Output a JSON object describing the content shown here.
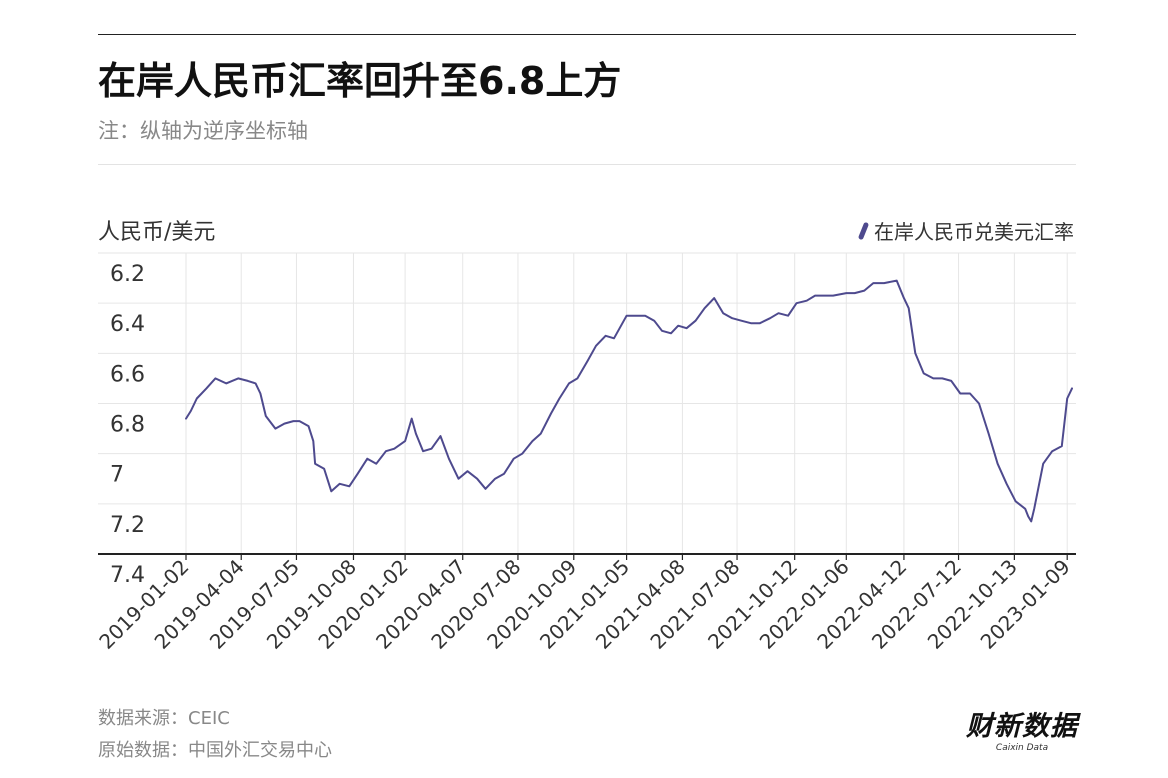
{
  "title": "在岸人民币汇率回升至6.8上方",
  "subtitle": "注：纵轴为逆序坐标轴",
  "source": "数据来源：CEIC",
  "original_source": "原始数据：中国外汇交易中心",
  "brand": {
    "cn": "财新数据",
    "en": "Caixin Data"
  },
  "colors": {
    "line": "#4e4a8e",
    "grid": "#e6e6e6",
    "axis": "#222222",
    "tick_text": "#333333"
  },
  "chart_data": {
    "type": "line",
    "title": "在岸人民币汇率回升至6.8上方",
    "subtitle": "注：纵轴为逆序坐标轴",
    "ylabel": "人民币/美元",
    "xlabel": "",
    "y_reversed": true,
    "ylim": [
      6.2,
      7.4
    ],
    "yticks": [
      6.2,
      6.4,
      6.6,
      6.8,
      7,
      7.2,
      7.4
    ],
    "ytick_labels": [
      "6.2",
      "6.4",
      "6.6",
      "6.8",
      "7",
      "7.2",
      "7.4"
    ],
    "xlim": [
      "2019-01-02",
      "2023-01-17"
    ],
    "xticks": [
      "2019-01-02",
      "2019-04-04",
      "2019-07-05",
      "2019-10-08",
      "2020-01-02",
      "2020-04-07",
      "2020-07-08",
      "2020-10-09",
      "2021-01-05",
      "2021-04-08",
      "2021-07-08",
      "2021-10-12",
      "2022-01-06",
      "2022-04-12",
      "2022-07-12",
      "2022-10-13",
      "2023-01-09"
    ],
    "grid": true,
    "legend": "top-right",
    "series": [
      {
        "name": "在岸人民币兑美元汇率",
        "x": [
          "2019-01-02",
          "2019-01-10",
          "2019-01-20",
          "2019-02-05",
          "2019-02-20",
          "2019-03-10",
          "2019-03-30",
          "2019-04-15",
          "2019-04-28",
          "2019-05-06",
          "2019-05-15",
          "2019-05-31",
          "2019-06-15",
          "2019-06-30",
          "2019-07-10",
          "2019-07-25",
          "2019-08-02",
          "2019-08-05",
          "2019-08-20",
          "2019-09-01",
          "2019-09-15",
          "2019-10-01",
          "2019-10-15",
          "2019-10-31",
          "2019-11-15",
          "2019-12-01",
          "2019-12-15",
          "2020-01-02",
          "2020-01-13",
          "2020-01-20",
          "2020-02-01",
          "2020-02-15",
          "2020-03-01",
          "2020-03-15",
          "2020-03-31",
          "2020-04-15",
          "2020-05-01",
          "2020-05-15",
          "2020-05-31",
          "2020-06-15",
          "2020-07-01",
          "2020-07-15",
          "2020-08-01",
          "2020-08-15",
          "2020-09-01",
          "2020-09-15",
          "2020-10-01",
          "2020-10-15",
          "2020-11-01",
          "2020-11-15",
          "2020-12-01",
          "2020-12-15",
          "2021-01-05",
          "2021-01-20",
          "2021-02-05",
          "2021-02-20",
          "2021-03-05",
          "2021-03-20",
          "2021-04-01",
          "2021-04-15",
          "2021-04-30",
          "2021-05-15",
          "2021-05-31",
          "2021-06-15",
          "2021-06-30",
          "2021-07-15",
          "2021-07-31",
          "2021-08-15",
          "2021-09-01",
          "2021-09-15",
          "2021-10-01",
          "2021-10-15",
          "2021-11-01",
          "2021-11-15",
          "2021-12-01",
          "2021-12-15",
          "2022-01-06",
          "2022-01-20",
          "2022-02-05",
          "2022-02-20",
          "2022-03-10",
          "2022-03-31",
          "2022-04-12",
          "2022-04-20",
          "2022-05-01",
          "2022-05-15",
          "2022-05-31",
          "2022-06-15",
          "2022-06-30",
          "2022-07-15",
          "2022-07-31",
          "2022-08-15",
          "2022-08-31",
          "2022-09-15",
          "2022-09-30",
          "2022-10-15",
          "2022-10-31",
          "2022-11-05",
          "2022-11-10",
          "2022-11-15",
          "2022-11-30",
          "2022-12-15",
          "2022-12-31",
          "2023-01-09",
          "2023-01-17"
        ],
        "values": [
          6.86,
          6.83,
          6.78,
          6.74,
          6.7,
          6.72,
          6.7,
          6.71,
          6.72,
          6.76,
          6.85,
          6.9,
          6.88,
          6.87,
          6.87,
          6.89,
          6.95,
          7.04,
          7.06,
          7.15,
          7.12,
          7.13,
          7.08,
          7.02,
          7.04,
          6.99,
          6.98,
          6.95,
          6.86,
          6.92,
          6.99,
          6.98,
          6.93,
          7.02,
          7.1,
          7.07,
          7.1,
          7.14,
          7.1,
          7.08,
          7.02,
          7.0,
          6.95,
          6.92,
          6.84,
          6.78,
          6.72,
          6.7,
          6.63,
          6.57,
          6.53,
          6.54,
          6.45,
          6.45,
          6.45,
          6.47,
          6.51,
          6.52,
          6.49,
          6.5,
          6.47,
          6.42,
          6.38,
          6.44,
          6.46,
          6.47,
          6.48,
          6.48,
          6.46,
          6.44,
          6.45,
          6.4,
          6.39,
          6.37,
          6.37,
          6.37,
          6.36,
          6.36,
          6.35,
          6.32,
          6.32,
          6.31,
          6.38,
          6.42,
          6.6,
          6.68,
          6.7,
          6.7,
          6.71,
          6.76,
          6.76,
          6.8,
          6.92,
          7.04,
          7.12,
          7.19,
          7.22,
          7.25,
          7.27,
          7.22,
          7.04,
          6.99,
          6.97,
          6.78,
          6.74
        ]
      }
    ]
  }
}
